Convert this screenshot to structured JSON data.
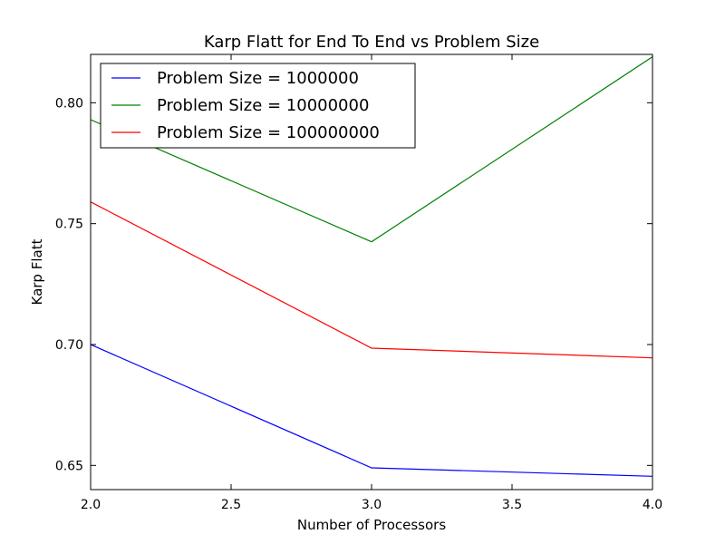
{
  "chart_data": {
    "type": "line",
    "title": "Karp Flatt for End To End vs Problem Size",
    "xlabel": "Number of Processors",
    "ylabel": "Karp Flatt",
    "x": [
      2,
      3,
      4
    ],
    "xlim": [
      2.0,
      4.0
    ],
    "ylim": [
      0.64,
      0.82
    ],
    "xticks": [
      2.0,
      2.5,
      3.0,
      3.5,
      4.0
    ],
    "xtick_labels": [
      "2.0",
      "2.5",
      "3.0",
      "3.5",
      "4.0"
    ],
    "yticks": [
      0.65,
      0.7,
      0.75,
      0.8
    ],
    "ytick_labels": [
      "0.65",
      "0.70",
      "0.75",
      "0.80"
    ],
    "grid": false,
    "legend_position": "top-left",
    "series": [
      {
        "name": "Problem Size = 1000000",
        "color": "#0000ff",
        "values": [
          0.7,
          0.649,
          0.6455
        ]
      },
      {
        "name": "Problem Size = 10000000",
        "color": "#008000",
        "values": [
          0.793,
          0.7425,
          0.819
        ]
      },
      {
        "name": "Problem Size = 100000000",
        "color": "#ff0000",
        "values": [
          0.759,
          0.6985,
          0.6945
        ]
      }
    ]
  }
}
